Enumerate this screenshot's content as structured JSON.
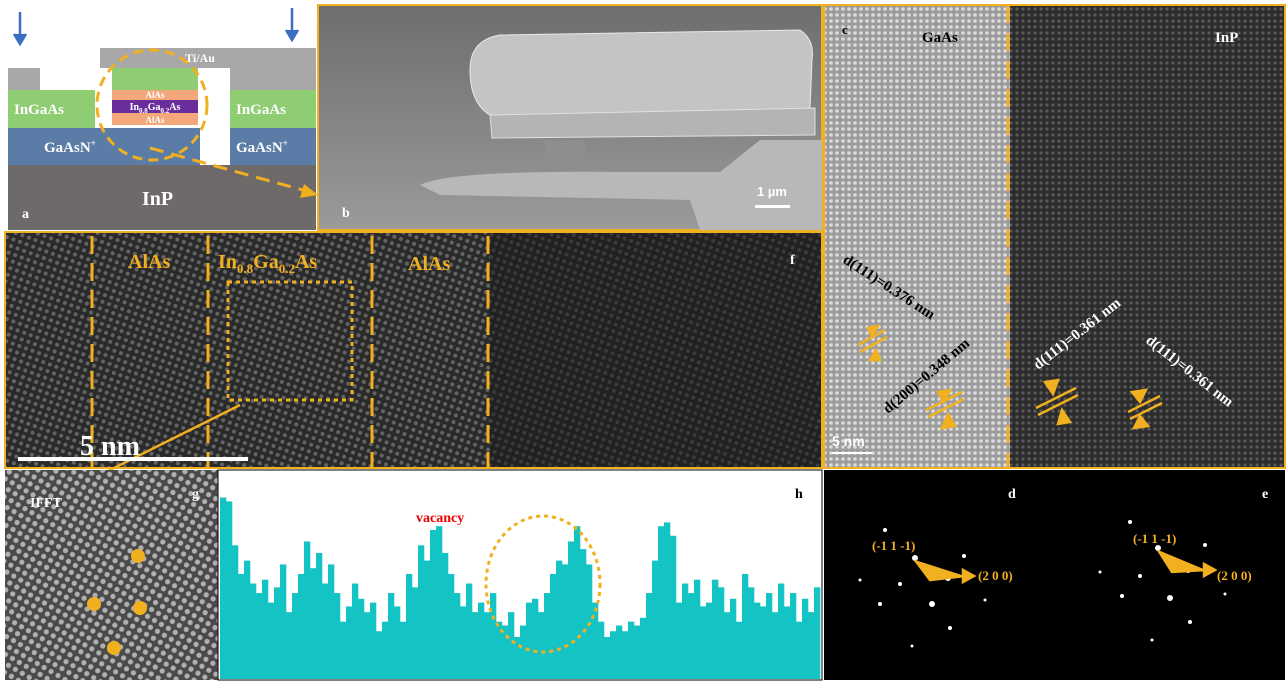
{
  "panel_a": {
    "label": "a",
    "contact": "Ti/Au",
    "left_layer": "InGaAs",
    "right_layer": "InGaAs",
    "barrier_top": "AlAs",
    "well": [
      "In",
      "0.8",
      "Ga",
      "0.2",
      "As"
    ],
    "barrier_bottom": "AlAs",
    "contact_layer_left": [
      "GaAsN",
      "+"
    ],
    "contact_layer_right": [
      "GaAsN",
      "+"
    ],
    "substrate": "InP"
  },
  "panel_b": {
    "label": "b",
    "scale": "1 µm"
  },
  "panel_c": {
    "label": "c",
    "left": "GaAs",
    "right": "InP",
    "d1": "d(111)=0.376 nm",
    "d2": "d(200)=0.348 nm",
    "d3": "d(111)=0.361 nm",
    "d4": "d(111)=0.361 nm",
    "scale": "5 nm"
  },
  "panel_f": {
    "label": "f",
    "layer1": "AlAs",
    "well": [
      "In",
      "0.8",
      "Ga",
      "0.2",
      "As"
    ],
    "layer3": "AlAs",
    "scale": "5 nm"
  },
  "panel_g": {
    "label": "g",
    "title": "IFFT"
  },
  "panel_h": {
    "label": "h",
    "annotation": "vacancy",
    "profile": [
      95,
      93,
      70,
      55,
      62,
      50,
      45,
      52,
      40,
      48,
      60,
      35,
      45,
      55,
      72,
      58,
      66,
      50,
      60,
      45,
      30,
      38,
      50,
      42,
      35,
      40,
      25,
      30,
      45,
      38,
      30,
      55,
      48,
      70,
      62,
      78,
      80,
      66,
      55,
      45,
      38,
      50,
      35,
      40,
      35,
      45,
      30,
      28,
      35,
      22,
      28,
      40,
      42,
      35,
      45,
      55,
      62,
      60,
      72,
      80,
      68,
      60,
      40,
      30,
      22,
      25,
      28,
      25,
      30,
      28,
      32,
      45,
      62,
      80,
      82,
      75,
      40,
      50,
      45,
      52,
      38,
      40,
      52,
      48,
      35,
      42,
      30,
      55,
      48,
      40,
      38,
      45,
      35,
      50,
      38,
      45,
      30,
      42,
      35,
      48
    ]
  },
  "panel_d": {
    "label": "d",
    "spot1": "(-1 1 -1)",
    "spot2": "(2 0 0)"
  },
  "panel_e": {
    "label": "e",
    "spot1": "(-1 1 -1)",
    "spot2": "(2 0 0)"
  }
}
